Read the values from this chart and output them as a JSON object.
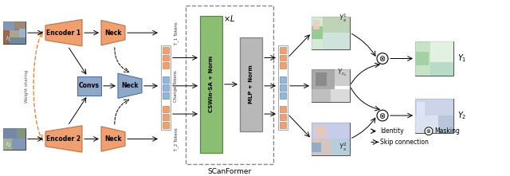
{
  "bg_color": "#ffffff",
  "orange_enc": "#F0A070",
  "orange_neck": "#F0A070",
  "blue_convs": "#8FA8C8",
  "blue_neck": "#8FA8C8",
  "green_cswin": "#8BBE72",
  "gray_mlp": "#B8B8B8",
  "token_orange": "#F0A070",
  "token_blue": "#90B8D8",
  "scanformer_label": "SCanFormer",
  "xL_label": "\\times L",
  "weight_sharing": "Weight sharing",
  "t1_tokens": "T_1 Tokens",
  "change_tokens": "Change Tokens",
  "t2_tokens": "T_2 Tokens",
  "cswin_label": "CSWin-SA + Norm",
  "mlp_label": "MLP + Norm",
  "encoder1_label": "Encoder 1",
  "encoder2_label": "Encoder 2",
  "neck_label": "Neck",
  "convs_label": "Convs",
  "legend_arrow": "Identity",
  "legend_circle": "Masking",
  "legend_dash": "Skip connection"
}
